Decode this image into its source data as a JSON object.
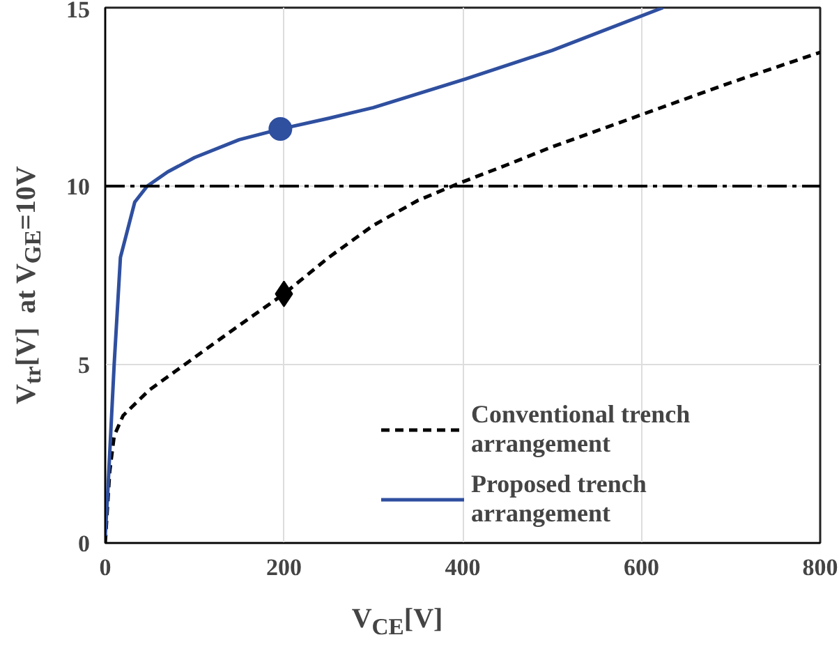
{
  "chart_data": {
    "type": "line",
    "xlabel": "V$_{CE}$[V]",
    "ylabel": "V$_{tr}$[V]  at V$_{GE}$=10V",
    "xlim": [
      0,
      800
    ],
    "ylim": [
      0,
      15
    ],
    "xticks": [
      0,
      200,
      400,
      600,
      800
    ],
    "yticks": [
      0,
      5,
      10,
      15
    ],
    "grid": true,
    "legend": "bottom right",
    "series": [
      {
        "name": "Conventional trench arrangement",
        "color": "#000000",
        "line_style": "dashed",
        "x": [
          0,
          5,
          10,
          20,
          49,
          100,
          150,
          200,
          250,
          300,
          350,
          398,
          450,
          500,
          600,
          700,
          800
        ],
        "values": [
          0,
          2.0,
          3.0,
          3.57,
          4.28,
          5.2,
          6.1,
          6.98,
          8.0,
          8.9,
          9.6,
          10.1,
          10.6,
          11.1,
          12.0,
          12.9,
          13.75
        ]
      },
      {
        "name": "Proposed trench arrangement",
        "color": "#2f4f9f",
        "line_style": "solid",
        "x": [
          0,
          3,
          10,
          17,
          33,
          47,
          70,
          100,
          150,
          196,
          250,
          300,
          403,
          500,
          624
        ],
        "values": [
          0.2,
          1.5,
          5.0,
          8.0,
          9.55,
          10.0,
          10.4,
          10.8,
          11.3,
          11.6,
          11.9,
          12.2,
          13.0,
          13.8,
          15.0
        ]
      },
      {
        "type": "scatter",
        "marker": "circle",
        "color": "#2f4f9f",
        "x": [
          196
        ],
        "values": [
          11.6
        ]
      },
      {
        "type": "scatter",
        "marker": "diamond",
        "color": "#000000",
        "x": [
          200
        ],
        "values": [
          6.98
        ]
      }
    ],
    "ref_lines": [
      {
        "axis": "y",
        "value": 10,
        "color": "#000000",
        "line_style": "dashdot"
      }
    ]
  }
}
